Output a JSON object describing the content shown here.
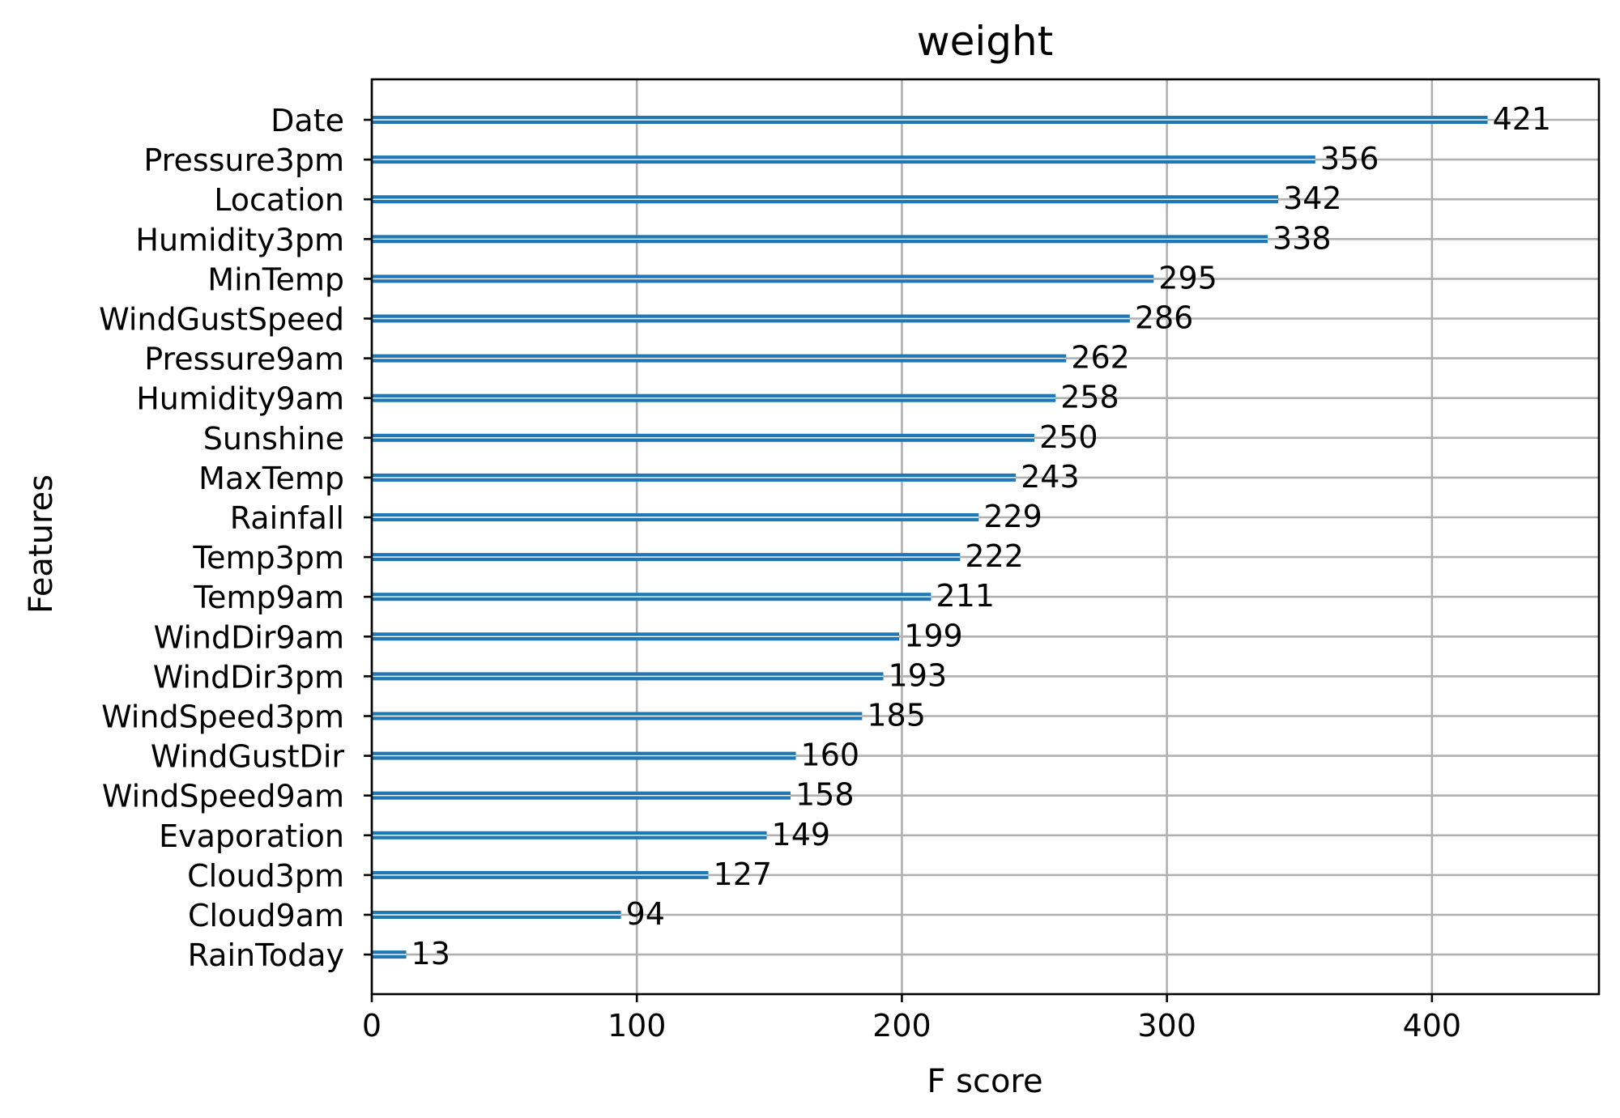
{
  "chart_data": {
    "type": "bar",
    "orientation": "horizontal",
    "title": "weight",
    "xlabel": "F score",
    "ylabel": "Features",
    "xlim": [
      0,
      463
    ],
    "xticks": [
      0,
      100,
      200,
      300,
      400
    ],
    "grid": true,
    "categories": [
      "Date",
      "Pressure3pm",
      "Location",
      "Humidity3pm",
      "MinTemp",
      "WindGustSpeed",
      "Pressure9am",
      "Humidity9am",
      "Sunshine",
      "MaxTemp",
      "Rainfall",
      "Temp3pm",
      "Temp9am",
      "WindDir9am",
      "WindDir3pm",
      "WindSpeed3pm",
      "WindGustDir",
      "WindSpeed9am",
      "Evaporation",
      "Cloud3pm",
      "Cloud9am",
      "RainToday"
    ],
    "values": [
      421,
      356,
      342,
      338,
      295,
      286,
      262,
      258,
      250,
      243,
      229,
      222,
      211,
      199,
      193,
      185,
      160,
      158,
      149,
      127,
      94,
      13
    ],
    "colors": {
      "bar": "#1f77b4",
      "grid": "#b0b0b0",
      "axis": "#000000"
    }
  }
}
